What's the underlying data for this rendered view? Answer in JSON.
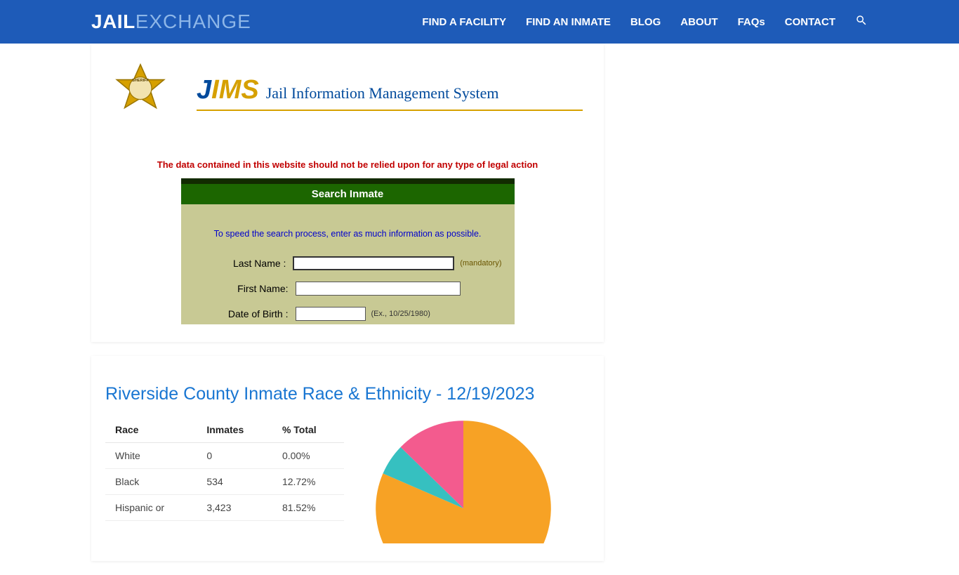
{
  "header": {
    "logo_part1": "JAIL",
    "logo_part2": "EXCHANGE",
    "nav": [
      "FIND A FACILITY",
      "FIND AN INMATE",
      "BLOG",
      "ABOUT",
      "FAQs",
      "CONTACT"
    ]
  },
  "jims": {
    "title_j": "J",
    "title_ims": "IMS",
    "full_name": "Jail Information Management System",
    "disclaimer": "The data contained in this website should not be relied upon for any type of legal action",
    "search_header": "Search Inmate",
    "hint": "To speed the search process, enter as much information as possible.",
    "fields": {
      "last_name_label": "Last Name :",
      "last_name_note": "(mandatory)",
      "first_name_label": "First Name:",
      "dob_label": "Date of Birth :",
      "dob_note": "(Ex., 10/25/1980)"
    }
  },
  "stats": {
    "heading": "Riverside County Inmate Race & Ethnicity - 12/19/2023",
    "table": {
      "columns": [
        "Race",
        "Inmates",
        "% Total"
      ],
      "rows": [
        [
          "White",
          "0",
          "0.00%"
        ],
        [
          "Black",
          "534",
          "12.72%"
        ],
        [
          "Hispanic or",
          "3,423",
          "81.52%"
        ]
      ]
    },
    "pie": {
      "type": "pie",
      "slices": [
        {
          "label": "orange",
          "value": 81.5,
          "color": "#f7a225"
        },
        {
          "label": "teal",
          "value": 5.8,
          "color": "#36c0c0"
        },
        {
          "label": "pink",
          "value": 12.7,
          "color": "#f35b8e"
        }
      ],
      "background_color": "#ffffff"
    }
  },
  "colors": {
    "header_bg": "#1e5bb8",
    "heading_blue": "#1976d2",
    "disclaimer_red": "#c10000",
    "search_header_bg": "#1c6600",
    "search_body_bg": "#c8c994",
    "jims_gold": "#d6a000",
    "jims_blue": "#004a9c"
  }
}
